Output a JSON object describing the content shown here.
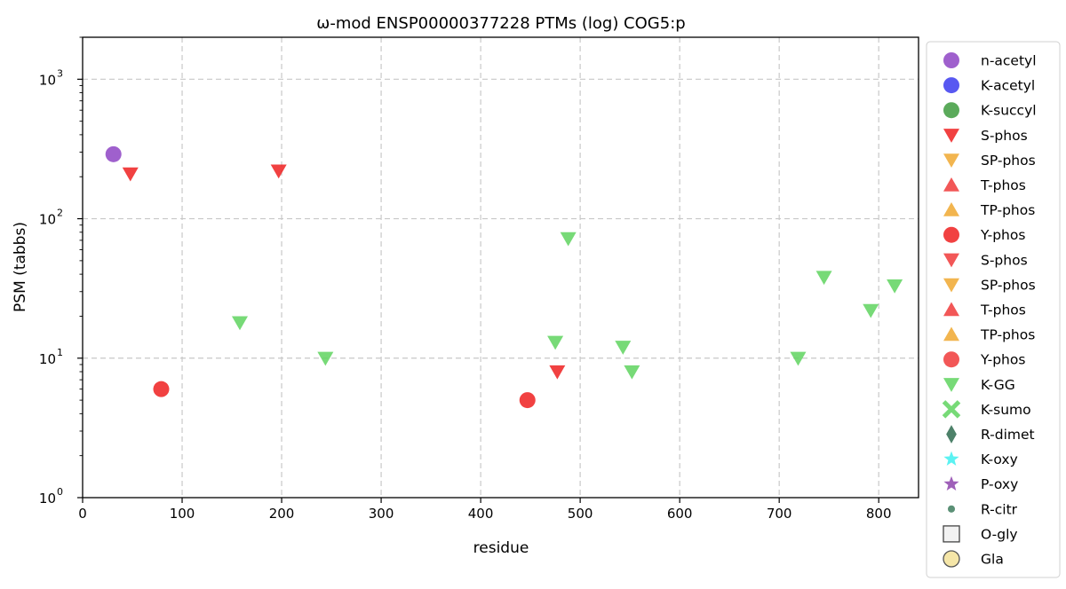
{
  "chart_data": {
    "type": "scatter",
    "title": "ω-mod ENSP00000377228 PTMs (log) COG5:p",
    "xlabel": "residue",
    "ylabel": "PSM (tabbs)",
    "xlim": [
      0,
      840
    ],
    "ylim": [
      1,
      2000
    ],
    "yscale": "log",
    "grid": true,
    "legend_placement": "outside right",
    "x_ticks": [
      0,
      100,
      200,
      300,
      400,
      500,
      600,
      700,
      800
    ],
    "y_ticks": [
      {
        "value": 1,
        "base": "10",
        "exp": "0"
      },
      {
        "value": 10,
        "base": "10",
        "exp": "1"
      },
      {
        "value": 100,
        "base": "10",
        "exp": "2"
      },
      {
        "value": 1000,
        "base": "10",
        "exp": "3"
      }
    ],
    "series": [
      {
        "name": "n-acetyl",
        "marker": "circle",
        "color": "#8e44c4",
        "points": [
          {
            "x": 31,
            "y": 290
          }
        ]
      },
      {
        "name": "K-acetyl",
        "marker": "circle",
        "color": "#3b3bef",
        "points": []
      },
      {
        "name": "K-succyl",
        "marker": "circle",
        "color": "#3e9b3e",
        "points": []
      },
      {
        "name": "S-phos",
        "marker": "triangle-down",
        "color": "#ee2020",
        "points": [
          {
            "x": 48,
            "y": 210
          },
          {
            "x": 197,
            "y": 220
          },
          {
            "x": 477,
            "y": 8
          }
        ]
      },
      {
        "name": "SP-phos",
        "marker": "triangle-down",
        "color": "#f0a830",
        "points": []
      },
      {
        "name": "T-phos",
        "marker": "triangle-up",
        "color": "#f03a3a",
        "points": []
      },
      {
        "name": "TP-phos",
        "marker": "triangle-up",
        "color": "#f0a830",
        "points": []
      },
      {
        "name": "Y-phos",
        "marker": "circle",
        "color": "#ee2020",
        "points": [
          {
            "x": 79,
            "y": 6
          },
          {
            "x": 447,
            "y": 5
          }
        ]
      },
      {
        "name": "S-phos",
        "marker": "triangle-down",
        "color": "#f03a3a",
        "points": []
      },
      {
        "name": "SP-phos",
        "marker": "triangle-down",
        "color": "#f0a830",
        "points": []
      },
      {
        "name": "T-phos",
        "marker": "triangle-up",
        "color": "#f03a3a",
        "points": []
      },
      {
        "name": "TP-phos",
        "marker": "triangle-up",
        "color": "#f0a830",
        "points": []
      },
      {
        "name": "Y-phos",
        "marker": "circle",
        "color": "#f03a3a",
        "points": []
      },
      {
        "name": "K-GG",
        "marker": "triangle-down",
        "color": "#5fd35f",
        "points": [
          {
            "x": 158,
            "y": 18
          },
          {
            "x": 244,
            "y": 10
          },
          {
            "x": 475,
            "y": 13
          },
          {
            "x": 488,
            "y": 72
          },
          {
            "x": 543,
            "y": 12
          },
          {
            "x": 552,
            "y": 8
          },
          {
            "x": 719,
            "y": 10
          },
          {
            "x": 745,
            "y": 38
          },
          {
            "x": 792,
            "y": 22
          },
          {
            "x": 816,
            "y": 33
          }
        ]
      },
      {
        "name": "K-sumo",
        "marker": "x",
        "color": "#5fd35f",
        "points": []
      },
      {
        "name": "R-dimet",
        "marker": "diamond",
        "color": "#2e6b4f",
        "points": []
      },
      {
        "name": "K-oxy",
        "marker": "star",
        "color": "#3ef0f0",
        "points": []
      },
      {
        "name": "P-oxy",
        "marker": "star",
        "color": "#8e44ad",
        "points": []
      },
      {
        "name": "R-citr",
        "marker": "small-circle",
        "color": "#3e7d5e",
        "points": []
      },
      {
        "name": "O-gly",
        "marker": "square-open",
        "color": "#444444",
        "points": []
      },
      {
        "name": "Gla",
        "marker": "circle-open",
        "color": "#555555",
        "points": []
      }
    ]
  }
}
